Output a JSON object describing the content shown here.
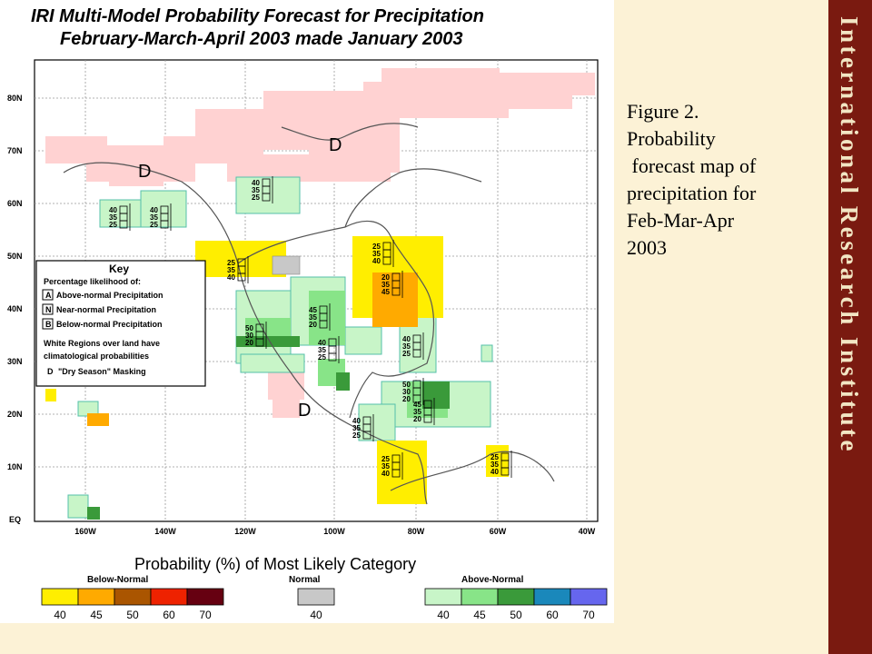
{
  "map": {
    "title": "IRI Multi-Model Probability Forecast for Precipitation",
    "subtitle": "February-March-April 2003 made January 2003",
    "lat_labels": [
      "80N",
      "70N",
      "60N",
      "50N",
      "40N",
      "30N",
      "20N",
      "10N",
      "EQ"
    ],
    "lon_labels": [
      "160W",
      "140W",
      "120W",
      "100W",
      "80W",
      "60W",
      "40W"
    ],
    "dry_season_mark": "D",
    "key": {
      "title": "Key",
      "heading": "Percentage likelihood of:",
      "items": [
        {
          "box": "A",
          "label": "Above-normal Precipitation"
        },
        {
          "box": "N",
          "label": "Near-normal Precipitation"
        },
        {
          "box": "B",
          "label": "Below-normal Precipitation"
        }
      ],
      "note_line1": "White Regions over land have",
      "note_line2": "climatological probabilities",
      "dry_label": "\"Dry Season\" Masking"
    },
    "colorbar": {
      "title": "Probability (%) of Most Likely Category",
      "groups": [
        {
          "name": "Below-Normal",
          "ticks": [
            "40",
            "45",
            "50",
            "60",
            "70"
          ],
          "colors": [
            "#ffee00",
            "#ffaa00",
            "#aa5500",
            "#ee2200",
            "#660011"
          ]
        },
        {
          "name": "Normal",
          "ticks": [
            "40"
          ],
          "colors": [
            "#c8c8c8"
          ]
        },
        {
          "name": "Above-Normal",
          "ticks": [
            "40",
            "45",
            "50",
            "60",
            "70"
          ],
          "colors": [
            "#c8f5c8",
            "#88e488",
            "#3a9a3a",
            "#1a88bb",
            "#6666ee"
          ]
        }
      ]
    },
    "forecast_boxes": [
      {
        "values": [
          "40",
          "35",
          "25"
        ]
      },
      {
        "values": [
          "40",
          "35",
          "25"
        ]
      },
      {
        "values": [
          "40",
          "35",
          "25"
        ]
      },
      {
        "values": [
          "25",
          "35",
          "40"
        ]
      },
      {
        "values": [
          "25",
          "35",
          "40"
        ]
      },
      {
        "values": [
          "20",
          "35",
          "45"
        ]
      },
      {
        "values": [
          "45",
          "35",
          "20"
        ]
      },
      {
        "values": [
          "40",
          "35",
          "25"
        ]
      },
      {
        "values": [
          "50",
          "30",
          "20"
        ]
      },
      {
        "values": [
          "40",
          "35",
          "25"
        ]
      },
      {
        "values": [
          "50",
          "30",
          "20"
        ]
      },
      {
        "values": [
          "45",
          "35",
          "20"
        ]
      },
      {
        "values": [
          "40",
          "35",
          "25"
        ]
      },
      {
        "values": [
          "25",
          "35",
          "40"
        ]
      },
      {
        "values": [
          "25",
          "35",
          "40"
        ]
      }
    ]
  },
  "caption": {
    "lines": [
      "Figure 2.",
      "Probability",
      " forecast map of",
      "precipitation for",
      "Feb-Mar-Apr",
      "2003"
    ]
  },
  "sidebar": {
    "title": "International Research Institute"
  }
}
